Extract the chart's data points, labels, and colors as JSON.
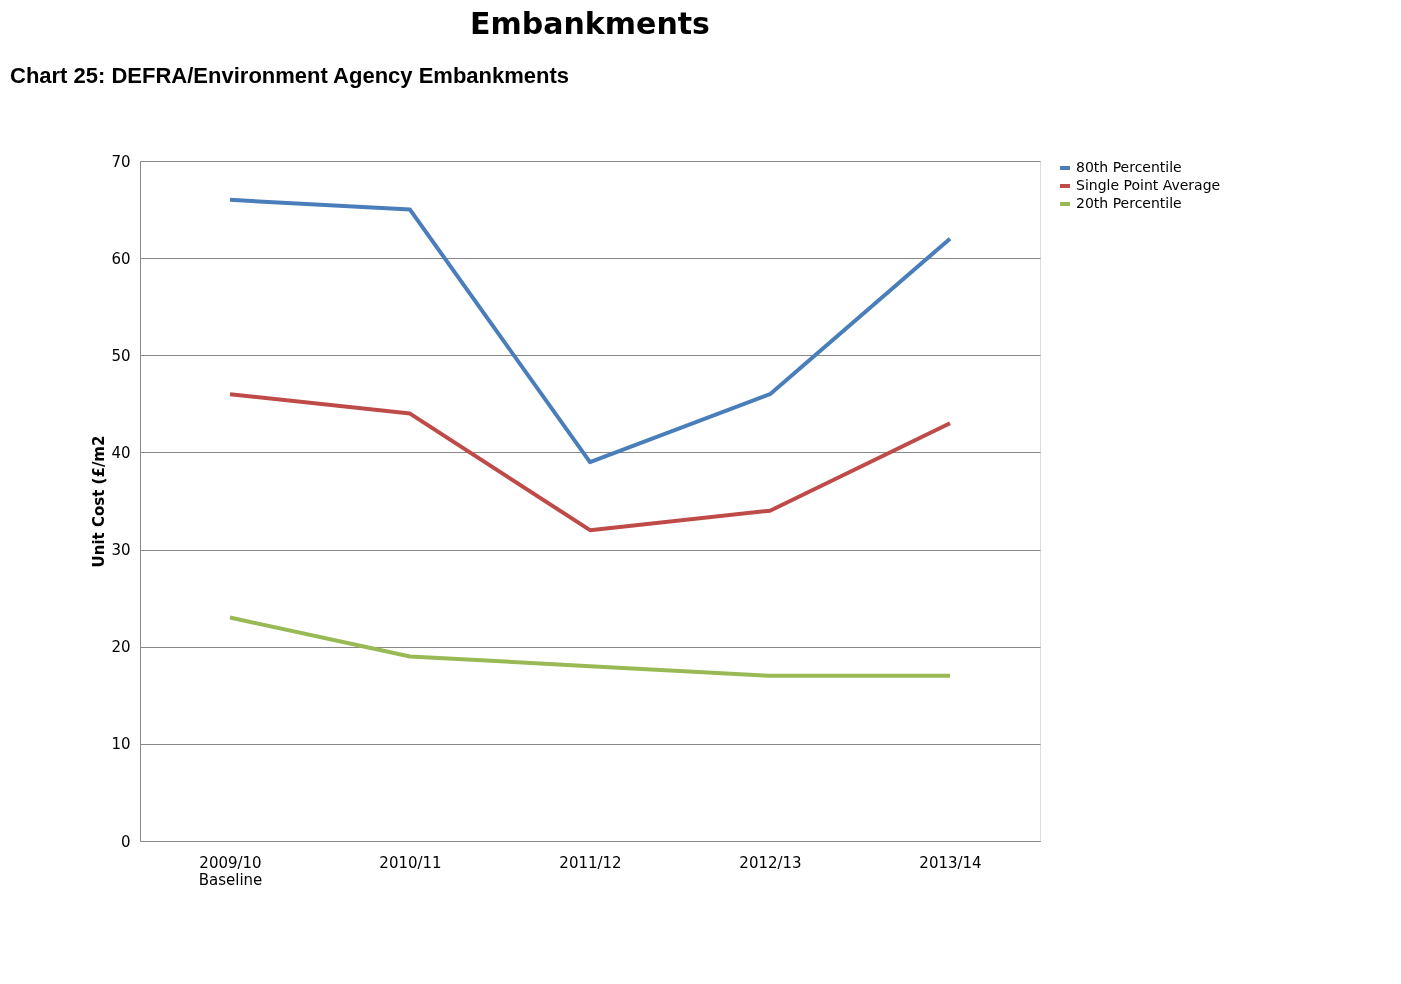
{
  "chart_data": {
    "type": "line",
    "title": "Embankments",
    "ylabel": "Unit Cost (£/m2",
    "annotations": [
      "Chart 25: DEFRA/Environment Agency Embankments"
    ],
    "categories": [
      "2009/10\nBaseline",
      "2010/11",
      "2011/12",
      "2012/13",
      "2013/14"
    ],
    "series": [
      {
        "name": "80th Percentile",
        "color": "#4a7ebb",
        "values": [
          66,
          65,
          39,
          46,
          62
        ]
      },
      {
        "name": "Single Point Average",
        "color": "#be4b48",
        "values": [
          46,
          44,
          32,
          34,
          43
        ]
      },
      {
        "name": "20th Percentile",
        "color": "#98b954",
        "values": [
          23,
          19,
          18,
          17,
          17
        ]
      }
    ],
    "ylim": [
      0,
      70
    ],
    "yticks": [
      0,
      10,
      20,
      30,
      40,
      50,
      60,
      70
    ],
    "grid": "y",
    "legend": "right",
    "marker": "none",
    "line_style": "solid"
  }
}
